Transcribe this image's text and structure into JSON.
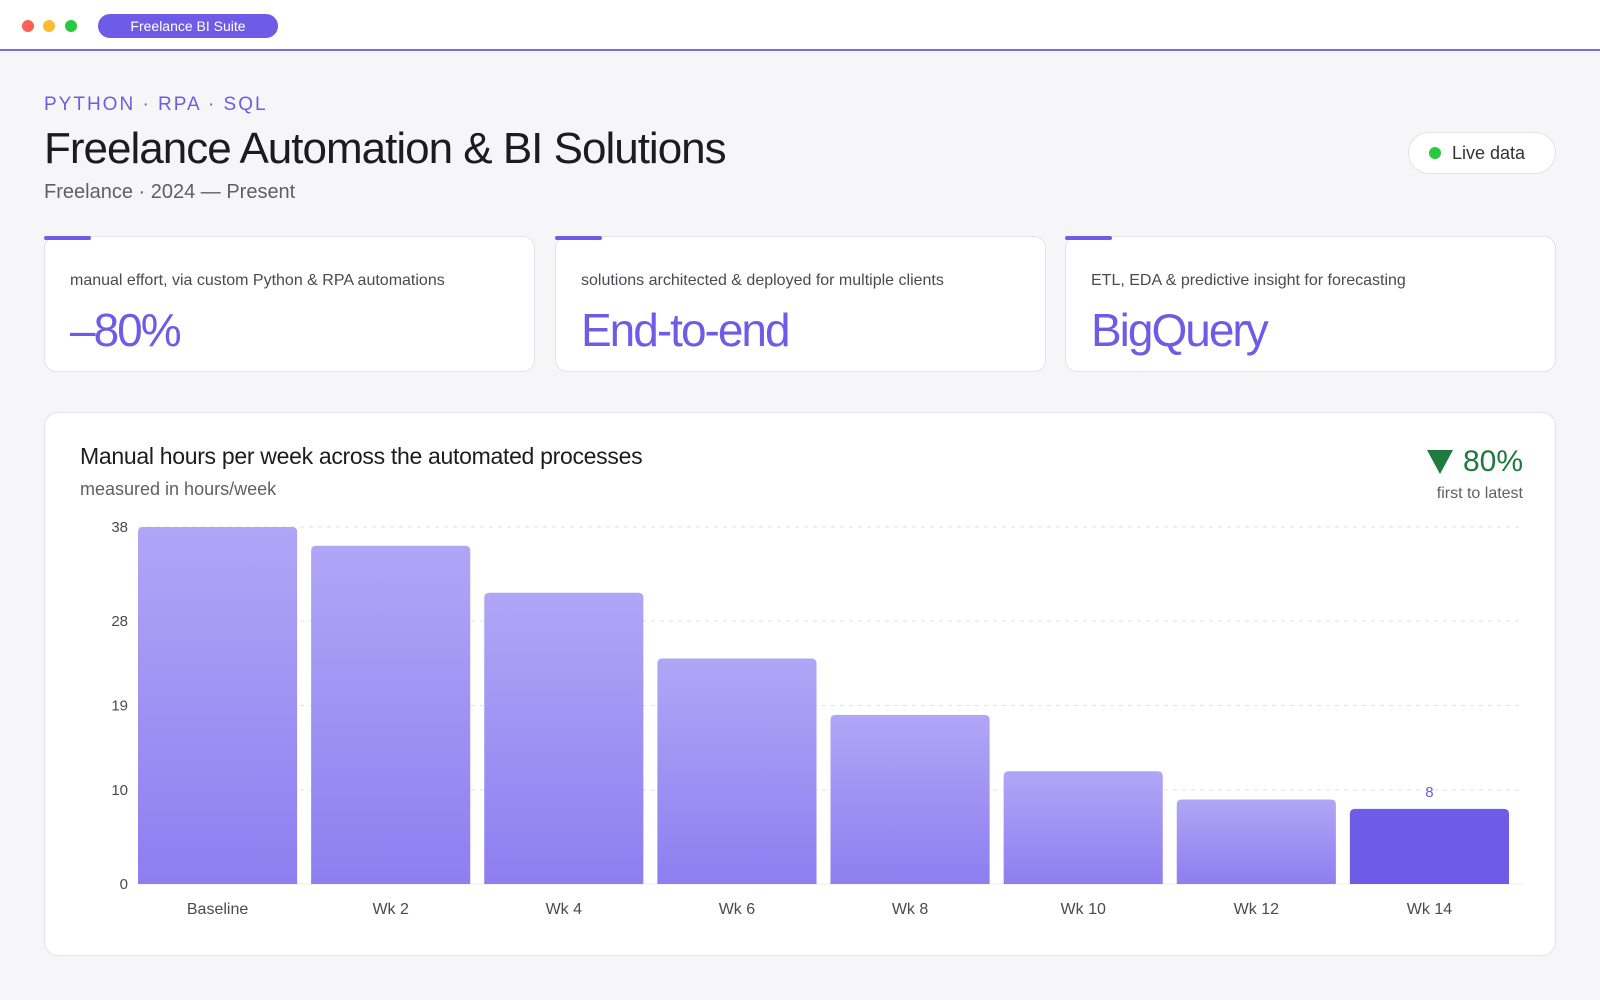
{
  "window": {
    "app_name": "Freelance BI Suite"
  },
  "header": {
    "eyebrow": "PYTHON · RPA · SQL",
    "title": "Freelance Automation & BI Solutions",
    "subtitle": "Freelance · 2024 — Present",
    "status": "Live data"
  },
  "stats": [
    {
      "caption": "manual effort, via custom Python & RPA automations",
      "value": "–80%"
    },
    {
      "caption": "solutions architected & deployed for multiple clients",
      "value": "End-to-end"
    },
    {
      "caption": "ETL, EDA & predictive insight for forecasting",
      "value": "BigQuery"
    }
  ],
  "chart_card": {
    "title": "Manual hours per week across the automated processes",
    "subtitle": "measured in hours/week",
    "delta_value": "80%",
    "delta_caption": "first to latest"
  },
  "colors": {
    "accent": "#6e5ce6",
    "bar_top": "#b0a6f6",
    "bar_bottom": "#8e7ef0",
    "highlight_bar": "#6e5ce6",
    "positive": "#1f7a3f"
  },
  "chart_data": {
    "type": "bar",
    "categories": [
      "Baseline",
      "Wk 2",
      "Wk 4",
      "Wk 6",
      "Wk 8",
      "Wk 10",
      "Wk 12",
      "Wk 14"
    ],
    "values": [
      38,
      36,
      31,
      24,
      18,
      12,
      9,
      8
    ],
    "yticks": [
      0,
      10,
      19,
      28,
      38
    ],
    "ylim": [
      0,
      38
    ],
    "grid": true,
    "highlight_index": 7,
    "data_labels": {
      "7": "8"
    },
    "title": "Manual hours per week across the automated processes",
    "xlabel": "",
    "ylabel": ""
  }
}
